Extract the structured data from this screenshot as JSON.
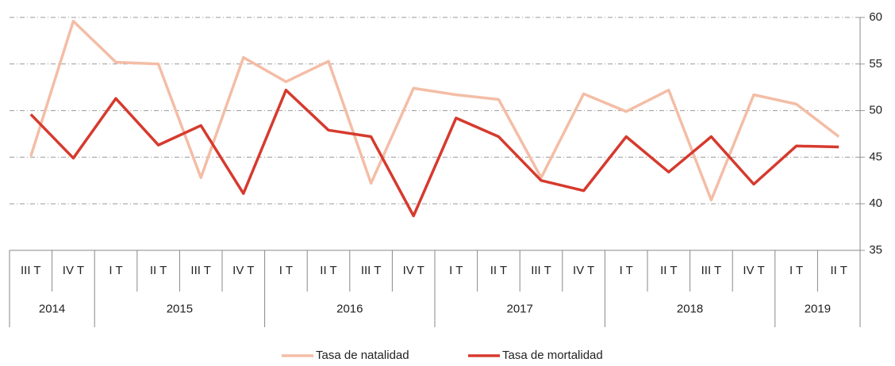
{
  "chart_data": {
    "type": "line",
    "groups": [
      {
        "label": "2014",
        "categories": [
          "III T",
          "IV T"
        ]
      },
      {
        "label": "2015",
        "categories": [
          "I T",
          "II T",
          "III T",
          "IV T"
        ]
      },
      {
        "label": "2016",
        "categories": [
          "I T",
          "II T",
          "III T",
          "IV T"
        ]
      },
      {
        "label": "2017",
        "categories": [
          "I T",
          "II T",
          "III T",
          "IV T"
        ]
      },
      {
        "label": "2018",
        "categories": [
          "I T",
          "II T",
          "III T",
          "IV T"
        ]
      },
      {
        "label": "2019",
        "categories": [
          "I T",
          "II T"
        ]
      }
    ],
    "series": [
      {
        "name": "Tasa de natalidad",
        "color": "#f4bda6",
        "values": [
          45.1,
          59.6,
          55.2,
          55.0,
          42.8,
          55.7,
          53.1,
          55.3,
          42.2,
          52.4,
          51.7,
          51.2,
          42.8,
          51.8,
          49.9,
          52.2,
          40.4,
          51.7,
          50.7,
          47.2
        ]
      },
      {
        "name": "Tasa de mortalidad",
        "color": "#d63a2e",
        "values": [
          49.6,
          44.9,
          51.3,
          46.3,
          48.4,
          41.1,
          52.2,
          47.9,
          47.2,
          38.7,
          49.2,
          47.2,
          42.5,
          41.4,
          47.2,
          43.4,
          47.2,
          42.1,
          46.2,
          46.1
        ]
      }
    ],
    "ylim": [
      35,
      60
    ],
    "yticks": [
      35,
      40,
      45,
      50,
      55,
      60
    ],
    "grid": true,
    "legend": "bottom"
  }
}
